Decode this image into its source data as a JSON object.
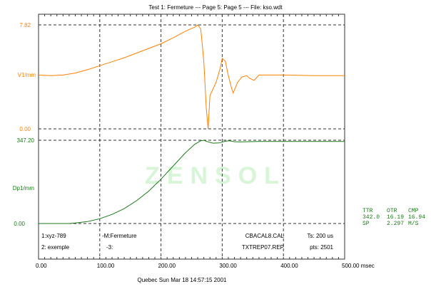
{
  "title": "Test 1: Fermeture --- Page 5:       Page 5 --- File: kso.wdt",
  "footer": "Quebec   Sun Mar 18 14:57:15 2001",
  "watermark": "ZENSOL",
  "colors": {
    "v1": "#ff8000",
    "dp1": "#1a7a1a",
    "grid": "#333333",
    "watermark": "#d8f5d8"
  },
  "info": {
    "left1": "1:xyz-789",
    "left2": "2: exemple",
    "mid1": "-M:Fermeture",
    "mid2": "-3:",
    "file1": "CBACAL8.CAL",
    "file2": "TXTREP07.REP",
    "ts": "Ts: 200 us",
    "pts": "pts: 2501"
  },
  "results": {
    "headers": [
      "TTR",
      "OTR",
      "CMP"
    ],
    "row1": [
      "342.0",
      "16.19",
      "16.94"
    ],
    "row2": [
      "SP",
      "2.297",
      "M/S"
    ]
  },
  "chart_data": [
    {
      "type": "line",
      "ylabel": "V1/mm",
      "ylim": [
        0.0,
        7.82
      ],
      "ytick_labels": [
        "7.82",
        "0.00"
      ],
      "xlim": [
        0,
        500
      ],
      "x": [
        0,
        20,
        40,
        60,
        80,
        100,
        120,
        140,
        160,
        180,
        200,
        220,
        240,
        255,
        260,
        265,
        270,
        274,
        277,
        280,
        285,
        290,
        297,
        300,
        305,
        310,
        315,
        318,
        325,
        332,
        340,
        345,
        352,
        360,
        380,
        400,
        450,
        500
      ],
      "y": [
        4.05,
        4.0,
        4.05,
        4.2,
        4.45,
        4.75,
        5.05,
        5.35,
        5.7,
        6.05,
        6.4,
        6.85,
        7.35,
        7.65,
        7.82,
        7.5,
        5.0,
        1.5,
        0.0,
        2.5,
        3.0,
        3.5,
        4.6,
        5.3,
        5.1,
        4.0,
        3.1,
        2.7,
        3.5,
        3.9,
        4.0,
        3.8,
        3.65,
        4.05,
        4.05,
        4.05,
        4.0,
        4.0
      ],
      "series_color": "#ff8000"
    },
    {
      "type": "line",
      "ylabel": "Dp1/mm",
      "ylim": [
        0.0,
        347.2
      ],
      "ytick_labels": [
        "347.20",
        "0.00"
      ],
      "xlim": [
        0,
        500
      ],
      "xlabel": "msec",
      "xtick_labels": [
        "0.00",
        "100.00",
        "200.00",
        "300.00",
        "400.00",
        "500.00 msec"
      ],
      "x": [
        0,
        50,
        60,
        80,
        100,
        120,
        140,
        160,
        180,
        200,
        220,
        240,
        255,
        265,
        270,
        275,
        285,
        295,
        305,
        312,
        320,
        330,
        340,
        360,
        400,
        500
      ],
      "y": [
        0,
        0,
        2,
        8,
        20,
        38,
        62,
        95,
        135,
        185,
        240,
        295,
        330,
        345,
        347.2,
        342,
        335,
        336,
        343,
        345,
        341,
        340,
        341,
        342,
        342,
        342
      ],
      "series_color": "#1a7a1a"
    }
  ]
}
